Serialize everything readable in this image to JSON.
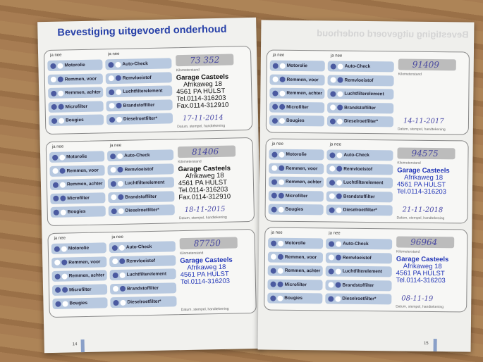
{
  "left_page": {
    "title": "Bevestiging uitgevoerd onderhoud",
    "page_number": "14",
    "cards": [
      {
        "km": "73 352",
        "date": "17-11-2014",
        "stamp": {
          "name": "Garage Casteels",
          "street": "Afrikaweg 18",
          "city": "4561 PA HULST",
          "tel": "Tel.0114-316203",
          "fax": "Fax.0114-312910",
          "color": "#111111"
        }
      },
      {
        "km": "81406",
        "date": "18-11-2015",
        "stamp": {
          "name": "Garage Casteels",
          "street": "Afrikaweg 18",
          "city": "4561 PA HULST",
          "tel": "Tel.0114-316203",
          "fax": "Fax.0114-312910",
          "color": "#111111"
        }
      },
      {
        "km": "87750",
        "date": "",
        "stamp": {
          "name": "Garage Casteels",
          "street": "Afrikaweg 18",
          "city": "4561 PA HULST",
          "tel": "Tel.0114-316203",
          "fax": "",
          "color": "#2236b8"
        }
      }
    ]
  },
  "right_page": {
    "title": "Bevestiging uitgevoerd onderhoud",
    "page_number": "15",
    "cards": [
      {
        "km": "91409",
        "date": "14-11-2017",
        "stamp": null
      },
      {
        "km": "94575",
        "date": "21-11-2018",
        "stamp": {
          "name": "Garage Casteels",
          "street": "Afrikaweg 18",
          "city": "4561 PA HULST",
          "tel": "Tel.0114-316203",
          "fax": "",
          "color": "#2236b8"
        }
      },
      {
        "km": "96964",
        "date": "08-11-19",
        "stamp": {
          "name": "Garage Casteels",
          "street": "Afrikaweg 18",
          "city": "4561 PA HULST",
          "tel": "Tel.0114-316203",
          "fax": "",
          "color": "#2236b8"
        }
      }
    ]
  },
  "form": {
    "col_header": "ja  nee",
    "left_items": [
      "Motorolie",
      "Remmen, voor",
      "Remmen, achter",
      "Microfilter",
      "Bougies"
    ],
    "right_items": [
      "Auto-Check",
      "Remvloeistof",
      "Luchtfilterelement",
      "Brandstoffilter",
      "Dieselroetfilter*"
    ],
    "km_label": "Kilometerstand",
    "sign_label": "Datum, stempel, handtekening"
  }
}
